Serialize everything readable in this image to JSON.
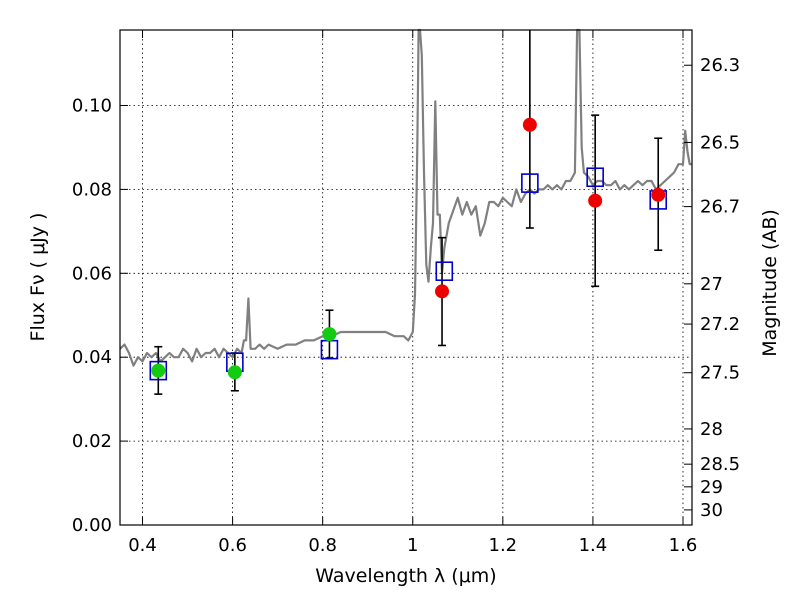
{
  "chart_data": {
    "type": "scatter",
    "xlabel": "Wavelength  λ (μm)",
    "ylabel": "Flux  Fν  ( μJy )",
    "y2label": "Magnitude (AB)",
    "xlim": [
      0.35,
      1.62
    ],
    "ylim": [
      0.0,
      0.118
    ],
    "x_ticks": [
      0.4,
      0.6,
      0.8,
      1.0,
      1.2,
      1.4,
      1.6
    ],
    "x_tick_labels": [
      "0.4",
      "0.6",
      "0.8",
      "1",
      "1.2",
      "1.4",
      "1.6"
    ],
    "y_ticks": [
      0.0,
      0.02,
      0.04,
      0.06,
      0.08,
      0.1
    ],
    "y_tick_labels": [
      "0.00",
      "0.02",
      "0.04",
      "0.06",
      "0.08",
      "0.10"
    ],
    "mag_ticks": [
      {
        "label": "26.3",
        "y": 0.1096
      },
      {
        "label": "26.5",
        "y": 0.0912
      },
      {
        "label": "26.7",
        "y": 0.0759
      },
      {
        "label": "27",
        "y": 0.0575
      },
      {
        "label": "27.2",
        "y": 0.0479
      },
      {
        "label": "27.5",
        "y": 0.0363
      },
      {
        "label": "28",
        "y": 0.0229
      },
      {
        "label": "28.5",
        "y": 0.0145
      },
      {
        "label": "29",
        "y": 0.0091
      },
      {
        "label": "30",
        "y": 0.0036
      }
    ],
    "grid": true,
    "colors": {
      "spectrum": "#808080",
      "green_points": "#11cc11",
      "red_points": "#ee0000",
      "model_squares": "#0000cc",
      "error_bars": "#000000"
    },
    "spectrum": {
      "x": [
        0.35,
        0.36,
        0.37,
        0.38,
        0.39,
        0.4,
        0.41,
        0.42,
        0.43,
        0.44,
        0.45,
        0.46,
        0.47,
        0.48,
        0.49,
        0.5,
        0.51,
        0.52,
        0.53,
        0.54,
        0.55,
        0.56,
        0.57,
        0.58,
        0.59,
        0.6,
        0.61,
        0.62,
        0.625,
        0.63,
        0.635,
        0.64,
        0.65,
        0.66,
        0.67,
        0.68,
        0.7,
        0.72,
        0.74,
        0.76,
        0.78,
        0.8,
        0.82,
        0.84,
        0.86,
        0.88,
        0.9,
        0.92,
        0.94,
        0.96,
        0.98,
        0.99,
        1.0,
        1.005,
        1.01,
        1.013,
        1.016,
        1.02,
        1.025,
        1.03,
        1.035,
        1.04,
        1.045,
        1.05,
        1.055,
        1.06,
        1.065,
        1.07,
        1.08,
        1.09,
        1.1,
        1.11,
        1.12,
        1.13,
        1.14,
        1.15,
        1.16,
        1.17,
        1.18,
        1.19,
        1.2,
        1.21,
        1.22,
        1.23,
        1.24,
        1.25,
        1.26,
        1.27,
        1.28,
        1.29,
        1.3,
        1.31,
        1.32,
        1.33,
        1.34,
        1.35,
        1.36,
        1.365,
        1.37,
        1.375,
        1.38,
        1.39,
        1.4,
        1.41,
        1.42,
        1.43,
        1.44,
        1.45,
        1.46,
        1.47,
        1.48,
        1.49,
        1.5,
        1.51,
        1.52,
        1.53,
        1.54,
        1.55,
        1.56,
        1.57,
        1.58,
        1.59,
        1.6,
        1.605,
        1.61,
        1.615,
        1.62
      ],
      "y": [
        0.042,
        0.043,
        0.041,
        0.038,
        0.04,
        0.039,
        0.041,
        0.04,
        0.041,
        0.039,
        0.04,
        0.041,
        0.04,
        0.04,
        0.042,
        0.041,
        0.039,
        0.042,
        0.04,
        0.041,
        0.041,
        0.042,
        0.04,
        0.042,
        0.041,
        0.04,
        0.042,
        0.041,
        0.044,
        0.044,
        0.054,
        0.042,
        0.042,
        0.043,
        0.042,
        0.043,
        0.042,
        0.043,
        0.043,
        0.044,
        0.044,
        0.045,
        0.045,
        0.046,
        0.046,
        0.046,
        0.046,
        0.046,
        0.046,
        0.045,
        0.045,
        0.044,
        0.046,
        0.055,
        0.09,
        0.118,
        0.118,
        0.112,
        0.084,
        0.062,
        0.058,
        0.066,
        0.072,
        0.101,
        0.074,
        0.074,
        0.06,
        0.066,
        0.072,
        0.075,
        0.078,
        0.074,
        0.077,
        0.074,
        0.076,
        0.069,
        0.072,
        0.077,
        0.077,
        0.076,
        0.078,
        0.077,
        0.076,
        0.08,
        0.077,
        0.079,
        0.08,
        0.079,
        0.08,
        0.08,
        0.081,
        0.08,
        0.081,
        0.08,
        0.082,
        0.082,
        0.084,
        0.118,
        0.118,
        0.09,
        0.084,
        0.083,
        0.081,
        0.082,
        0.082,
        0.081,
        0.081,
        0.082,
        0.08,
        0.081,
        0.08,
        0.081,
        0.082,
        0.081,
        0.082,
        0.082,
        0.08,
        0.081,
        0.082,
        0.083,
        0.084,
        0.086,
        0.086,
        0.094,
        0.089,
        0.086,
        0.086
      ]
    },
    "green_points": [
      {
        "x": 0.435,
        "y": 0.0368
      },
      {
        "x": 0.605,
        "y": 0.0364
      },
      {
        "x": 0.815,
        "y": 0.0455
      }
    ],
    "red_points": [
      {
        "x": 1.065,
        "y": 0.0557
      },
      {
        "x": 1.26,
        "y": 0.0954
      },
      {
        "x": 1.405,
        "y": 0.0773
      },
      {
        "x": 1.545,
        "y": 0.0787
      }
    ],
    "model_squares": [
      {
        "x": 0.435,
        "y": 0.0368
      },
      {
        "x": 0.605,
        "y": 0.0388
      },
      {
        "x": 0.815,
        "y": 0.0418
      },
      {
        "x": 1.07,
        "y": 0.0605
      },
      {
        "x": 1.26,
        "y": 0.0815
      },
      {
        "x": 1.405,
        "y": 0.0829
      },
      {
        "x": 1.545,
        "y": 0.0775
      }
    ],
    "error_bars": [
      {
        "x": 0.435,
        "y": 0.0368,
        "low": 0.0312,
        "high": 0.0425
      },
      {
        "x": 0.605,
        "y": 0.0364,
        "low": 0.032,
        "high": 0.041
      },
      {
        "x": 0.815,
        "y": 0.0455,
        "low": 0.0398,
        "high": 0.0512
      },
      {
        "x": 1.065,
        "y": 0.0557,
        "low": 0.0428,
        "high": 0.0685
      },
      {
        "x": 1.26,
        "y": 0.0954,
        "low": 0.0708,
        "high": 0.118
      },
      {
        "x": 1.405,
        "y": 0.0773,
        "low": 0.0569,
        "high": 0.0977
      },
      {
        "x": 1.545,
        "y": 0.0787,
        "low": 0.0655,
        "high": 0.0922
      }
    ]
  }
}
